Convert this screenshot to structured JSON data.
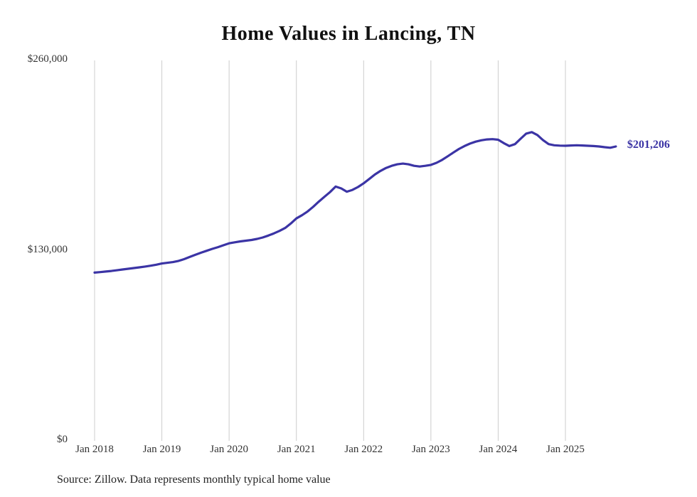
{
  "chart_data": {
    "type": "line",
    "title": "Home Values in Lancing, TN",
    "series_name": "Monthly typical home value",
    "line_color": "#3b34a5",
    "gridline_color": "#cccccc",
    "grid": "vertical-only",
    "legend": "none",
    "ylim": [
      0,
      260000
    ],
    "y_ticks": [
      {
        "value": 0,
        "label": "$0"
      },
      {
        "value": 130000,
        "label": "$130,000"
      },
      {
        "value": 260000,
        "label": "$260,000"
      }
    ],
    "x_tick_labels": [
      "Jan 2018",
      "Jan 2019",
      "Jan 2020",
      "Jan 2021",
      "Jan 2022",
      "Jan 2023",
      "Jan 2024",
      "Jan 2025"
    ],
    "end_label": "$201,206",
    "end_value": 201206,
    "x": [
      "2018-01",
      "2018-02",
      "2018-03",
      "2018-04",
      "2018-05",
      "2018-06",
      "2018-07",
      "2018-08",
      "2018-09",
      "2018-10",
      "2018-11",
      "2018-12",
      "2019-01",
      "2019-02",
      "2019-03",
      "2019-04",
      "2019-05",
      "2019-06",
      "2019-07",
      "2019-08",
      "2019-09",
      "2019-10",
      "2019-11",
      "2019-12",
      "2020-01",
      "2020-02",
      "2020-03",
      "2020-04",
      "2020-05",
      "2020-06",
      "2020-07",
      "2020-08",
      "2020-09",
      "2020-10",
      "2020-11",
      "2020-12",
      "2021-01",
      "2021-02",
      "2021-03",
      "2021-04",
      "2021-05",
      "2021-06",
      "2021-07",
      "2021-08",
      "2021-09",
      "2021-10",
      "2021-11",
      "2021-12",
      "2022-01",
      "2022-02",
      "2022-03",
      "2022-04",
      "2022-05",
      "2022-06",
      "2022-07",
      "2022-08",
      "2022-09",
      "2022-10",
      "2022-11",
      "2022-12",
      "2023-01",
      "2023-02",
      "2023-03",
      "2023-04",
      "2023-05",
      "2023-06",
      "2023-07",
      "2023-08",
      "2023-09",
      "2023-10",
      "2023-11",
      "2023-12",
      "2024-01",
      "2024-02",
      "2024-03",
      "2024-04",
      "2024-05",
      "2024-06",
      "2024-07",
      "2024-08",
      "2024-09",
      "2024-10",
      "2024-11",
      "2024-12",
      "2025-01",
      "2025-02",
      "2025-03",
      "2025-04",
      "2025-05",
      "2025-06",
      "2025-07",
      "2025-08",
      "2025-09",
      "2025-10"
    ],
    "values": [
      115000,
      115300,
      115700,
      116100,
      116600,
      117100,
      117600,
      118100,
      118600,
      119100,
      119700,
      120400,
      121200,
      121700,
      122200,
      123000,
      124200,
      125700,
      127200,
      128600,
      129900,
      131200,
      132400,
      133700,
      135000,
      135700,
      136300,
      136800,
      137300,
      138000,
      139000,
      140300,
      141800,
      143500,
      145500,
      148500,
      152000,
      154200,
      156800,
      160000,
      163500,
      166800,
      170000,
      173800,
      172500,
      170300,
      171500,
      173500,
      176000,
      179000,
      182000,
      184500,
      186500,
      188000,
      189000,
      189500,
      189000,
      188000,
      187500,
      188000,
      188600,
      190000,
      192000,
      194500,
      197000,
      199500,
      201500,
      203200,
      204500,
      205400,
      206000,
      206200,
      205800,
      203500,
      201500,
      202800,
      206500,
      210000,
      211000,
      209000,
      205500,
      202800,
      202000,
      201800,
      201700,
      201900,
      202000,
      201900,
      201700,
      201500,
      201200,
      200700,
      200300,
      201206
    ]
  },
  "footer": {
    "source": "Source: Zillow. Data represents monthly typical home value"
  }
}
